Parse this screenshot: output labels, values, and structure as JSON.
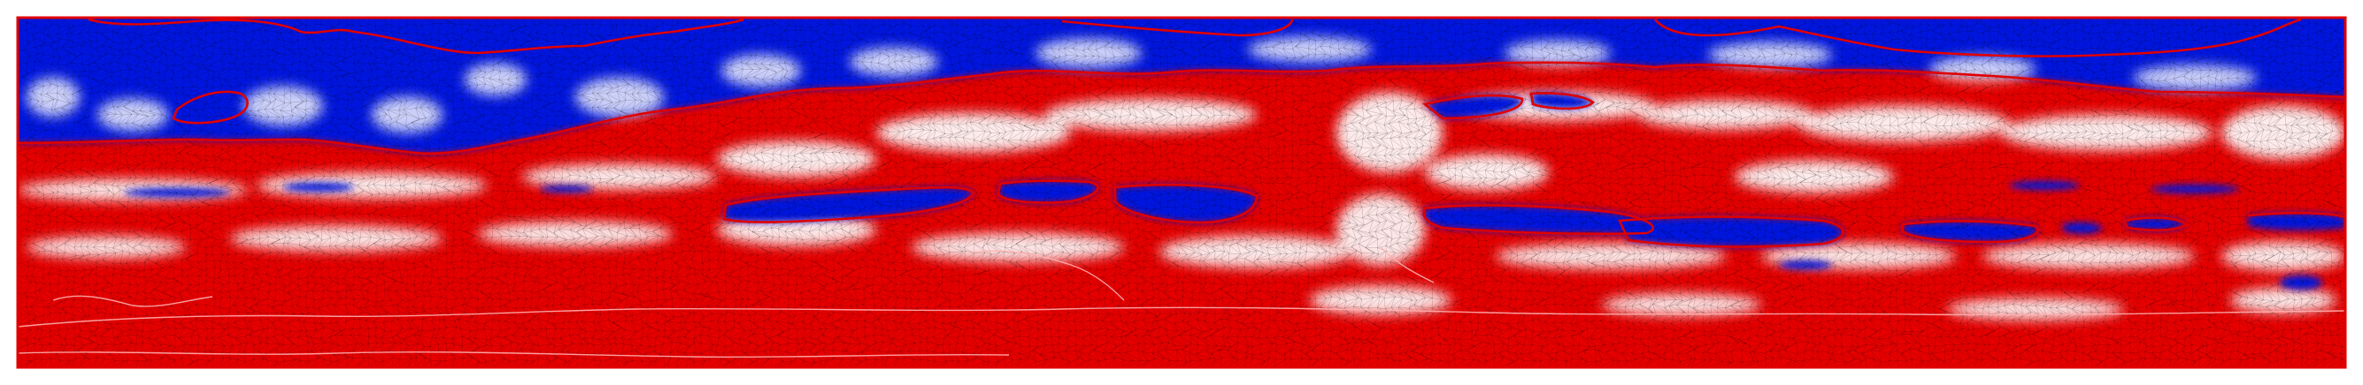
{
  "colors": {
    "background": "#ffffff",
    "negative": "#0000e6",
    "neutral": "#ffffff",
    "positive": "#e60000",
    "contour": "#e00000",
    "mesh": "#000000"
  },
  "field": {
    "layers": [
      {
        "label": "top-blue-band",
        "value": -1.0
      },
      {
        "label": "upper-mixed-band",
        "value": 0.3
      },
      {
        "label": "lower-red-band",
        "value": 0.9
      },
      {
        "label": "bottom-red-band",
        "value": 1.0
      }
    ]
  }
}
